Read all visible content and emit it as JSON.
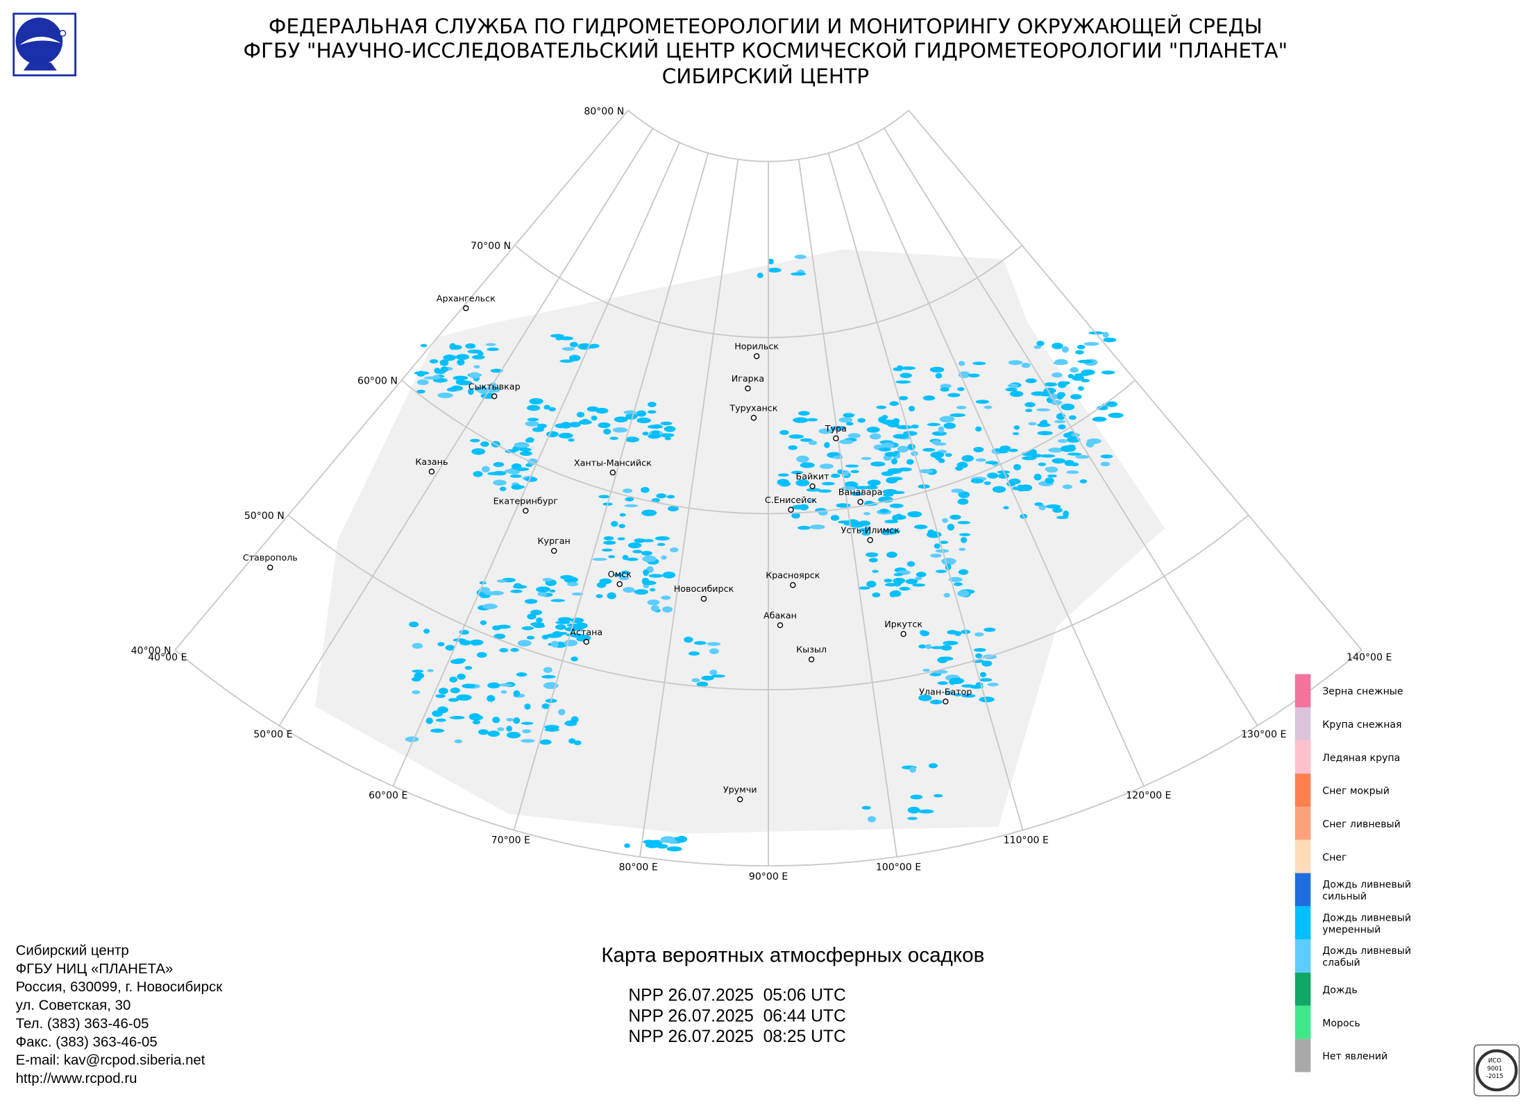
{
  "header": {
    "lines": [
      "ФЕДЕРАЛЬНАЯ СЛУЖБА ПО ГИДРОМЕТЕОРОЛОГИИ И МОНИТОРИНГУ ОКРУЖАЮЩЕЙ СРЕДЫ",
      "ФГБУ \"НАУЧНО-ИССЛЕДОВАТЕЛЬСКИЙ ЦЕНТР КОСМИЧЕСКОЙ ГИДРОМЕТЕОРОЛОГИИ \"ПЛАНЕТА\"",
      "СИБИРСКИЙ ЦЕНТР"
    ]
  },
  "map": {
    "latitudes": [
      {
        "value": 80,
        "label": "80°00 N"
      },
      {
        "value": 70,
        "label": "70°00 N"
      },
      {
        "value": 60,
        "label": "60°00 N"
      },
      {
        "value": 50,
        "label": "50°00 N"
      },
      {
        "value": 40,
        "label": "40°00 N"
      }
    ],
    "longitudes": [
      {
        "value": 40,
        "label": "40°00 E"
      },
      {
        "value": 50,
        "label": "50°00 E"
      },
      {
        "value": 60,
        "label": "60°00 E"
      },
      {
        "value": 70,
        "label": "70°00 E"
      },
      {
        "value": 80,
        "label": "80°00 E"
      },
      {
        "value": 90,
        "label": "90°00 E"
      },
      {
        "value": 100,
        "label": "100°00 E"
      },
      {
        "value": 110,
        "label": "110°00 E"
      },
      {
        "value": 120,
        "label": "120°00 E"
      },
      {
        "value": 130,
        "label": "130°00 E"
      },
      {
        "value": 140,
        "label": "140°00 E"
      }
    ],
    "cities": [
      "Архангельск",
      "Сыктывкар",
      "Казань",
      "Екатеринбург",
      "Курган",
      "Ставрополь",
      "Ханты-Мансийск",
      "Омск",
      "Астана",
      "Новосибирск",
      "Норильск",
      "Игарка",
      "Туруханск",
      "Тура",
      "Байкит",
      "Ванавара",
      "С.Енисейск",
      "Усть-Илимск",
      "Красноярск",
      "Абакан",
      "Иркутск",
      "Кызыл",
      "Улан-Батор",
      "Урумчи"
    ]
  },
  "legend": [
    {
      "color": "#f4729c",
      "lines": [
        "Зерна снежные"
      ]
    },
    {
      "color": "#dcc3dc",
      "lines": [
        "Крупа снежная"
      ]
    },
    {
      "color": "#ffc1cc",
      "lines": [
        "Ледяная крупа"
      ]
    },
    {
      "color": "#ff7f4f",
      "lines": [
        "Снег мокрый"
      ]
    },
    {
      "color": "#ffa17c",
      "lines": [
        "Снег ливневый"
      ]
    },
    {
      "color": "#ffdcb9",
      "lines": [
        "Снег"
      ]
    },
    {
      "color": "#1f6ee0",
      "lines": [
        "Дождь ливневый",
        "сильный"
      ]
    },
    {
      "color": "#00bfff",
      "lines": [
        "Дождь ливневый",
        "умеренный"
      ]
    },
    {
      "color": "#5ccdff",
      "lines": [
        "Дождь ливневый",
        "слабый"
      ]
    },
    {
      "color": "#10a865",
      "lines": [
        "Дождь"
      ]
    },
    {
      "color": "#3ee88a",
      "lines": [
        "Морось"
      ]
    },
    {
      "color": "#a9a9a9",
      "lines": [
        "Нет явлений"
      ]
    }
  ],
  "title": "Карта вероятных атмосферных осадков",
  "passes": [
    "NPP 26.07.2025  05:06 UTC",
    "NPP 26.07.2025  06:44 UTC",
    "NPP 26.07.2025  08:25 UTC"
  ],
  "contacts": [
    "Сибирский центр",
    "ФГБУ НИЦ «ПЛАНЕТА»",
    "Россия, 630099, г. Новосибирск",
    "ул. Советская, 30",
    "Тел. (383) 363-46-05",
    "Факс. (383) 363-46-05",
    "E-mail: kav@rcpod.siberia.net",
    "http://www.rcpod.ru"
  ],
  "iso_logo": [
    "ИСО",
    "9001",
    "-2015"
  ]
}
